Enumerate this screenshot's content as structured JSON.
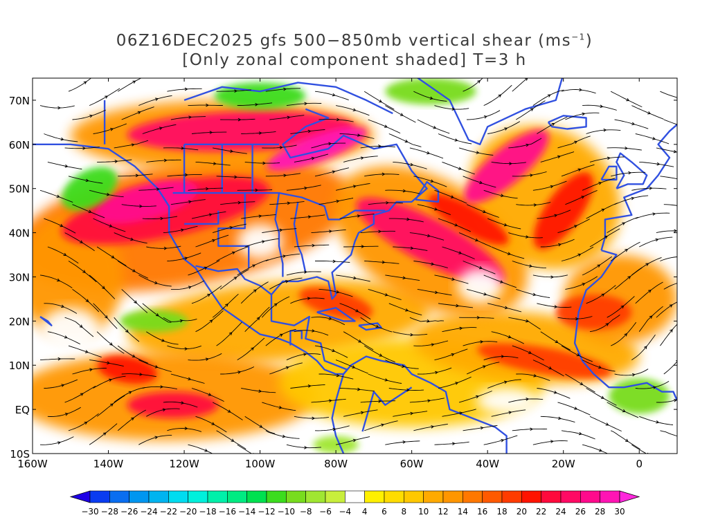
{
  "title": {
    "line1_prefix": "06Z16DEC2025 gfs 500−850mb vertical shear (ms",
    "line1_sup": "−1",
    "line1_suffix": ")",
    "line2": "[Only zonal component shaded] T=3 h"
  },
  "map": {
    "lon_range": [
      -160,
      10
    ],
    "lat_range": [
      -10,
      75
    ],
    "lat_ticks": [
      {
        "value": 70,
        "label": "70N"
      },
      {
        "value": 60,
        "label": "60N"
      },
      {
        "value": 50,
        "label": "50N"
      },
      {
        "value": 40,
        "label": "40N"
      },
      {
        "value": 30,
        "label": "30N"
      },
      {
        "value": 20,
        "label": "20N"
      },
      {
        "value": 10,
        "label": "10N"
      },
      {
        "value": 0,
        "label": "EQ"
      },
      {
        "value": -10,
        "label": "10S"
      }
    ],
    "lon_ticks": [
      {
        "value": -160,
        "label": "160W"
      },
      {
        "value": -140,
        "label": "140W"
      },
      {
        "value": -120,
        "label": "120W"
      },
      {
        "value": -100,
        "label": "100W"
      },
      {
        "value": -80,
        "label": "80W"
      },
      {
        "value": -60,
        "label": "60W"
      },
      {
        "value": -40,
        "label": "40W"
      },
      {
        "value": -20,
        "label": "20W"
      },
      {
        "value": 0,
        "label": "0"
      }
    ],
    "coastline_color": "#3050e0",
    "streamline_color": "#000000"
  },
  "colorbar": {
    "labels": [
      "-30",
      "-28",
      "-26",
      "-24",
      "-22",
      "-20",
      "-18",
      "-16",
      "-14",
      "-12",
      "-10",
      "-8",
      "-6",
      "-4",
      "4",
      "6",
      "8",
      "10",
      "12",
      "14",
      "16",
      "18",
      "20",
      "22",
      "24",
      "26",
      "28",
      "30"
    ],
    "colors": [
      "#1e00e6",
      "#0a3cf0",
      "#0a6ef0",
      "#0096f0",
      "#00b4f0",
      "#00dcf0",
      "#00f0dc",
      "#00f0aa",
      "#00eb82",
      "#00e150",
      "#3cdc1e",
      "#78dc1e",
      "#a0e632",
      "#c8ee3c",
      "#ffffff",
      "#fff000",
      "#ffdc00",
      "#ffc800",
      "#ffaa00",
      "#ff9600",
      "#ff7800",
      "#ff5a00",
      "#ff3c00",
      "#ff1400",
      "#ff0a3c",
      "#ff0a64",
      "#ff0a8c",
      "#ff14b4",
      "#ff28dc"
    ]
  }
}
